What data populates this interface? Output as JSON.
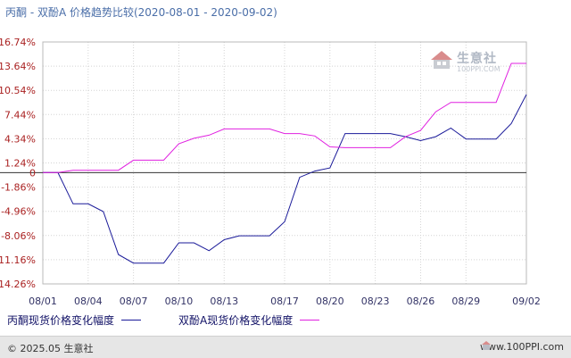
{
  "header": {
    "title": "丙酮 - 双酚A 价格趋势比较(2020-08-01 - 2020-09-02)"
  },
  "legend": [
    {
      "name": "丙酮现货价格变化幅度",
      "color": "#1a1a99"
    },
    {
      "name": "双酚A现货价格变化幅度",
      "color": "#e020e0"
    }
  ],
  "watermark": {
    "brand": "生意社",
    "url": "100PPI.COM"
  },
  "footer": {
    "copyright": "© 2025.05 生意社",
    "site": "www.100PPI.com"
  },
  "chart_data": {
    "type": "line",
    "title": "丙酮 - 双酚A 价格趋势比较(2020-08-01 - 2020-09-02)",
    "xlabel": "",
    "ylabel": "",
    "x_range": [
      "08/01",
      "09/02"
    ],
    "x_tick_labels": [
      "08/01",
      "08/04",
      "08/07",
      "08/10",
      "08/13",
      "08/17",
      "08/20",
      "08/23",
      "08/26",
      "08/29",
      "09/02"
    ],
    "y_tick_labels": [
      "16.74%",
      "13.64%",
      "10.54%",
      "7.44%",
      "4.34%",
      "1.24%",
      "0",
      "-1.86%",
      "-4.96%",
      "-8.06%",
      "-11.16%",
      "-14.26%"
    ],
    "y_ticks": [
      16.74,
      13.64,
      10.54,
      7.44,
      4.34,
      1.24,
      0,
      -1.86,
      -4.96,
      -8.06,
      -11.16,
      -14.26
    ],
    "ylim": [
      -14.26,
      16.74
    ],
    "grid": true,
    "legend_position": "bottom",
    "series": [
      {
        "name": "丙酮现货价格变化幅度",
        "color": "#1a1a99",
        "points": [
          [
            "08/01",
            0
          ],
          [
            "08/02",
            0
          ],
          [
            "08/03",
            -4.0
          ],
          [
            "08/04",
            -4.0
          ],
          [
            "08/05",
            -5.0
          ],
          [
            "08/06",
            -10.5
          ],
          [
            "08/07",
            -11.6
          ],
          [
            "08/08",
            -11.6
          ],
          [
            "08/09",
            -11.6
          ],
          [
            "08/10",
            -9.0
          ],
          [
            "08/11",
            -9.0
          ],
          [
            "08/12",
            -10.0
          ],
          [
            "08/13",
            -8.6
          ],
          [
            "08/14",
            -8.1
          ],
          [
            "08/15",
            -8.1
          ],
          [
            "08/16",
            -8.1
          ],
          [
            "08/17",
            -6.3
          ],
          [
            "08/18",
            -0.6
          ],
          [
            "08/19",
            0.2
          ],
          [
            "08/20",
            0.6
          ],
          [
            "08/21",
            5.0
          ],
          [
            "08/22",
            5.0
          ],
          [
            "08/23",
            5.0
          ],
          [
            "08/24",
            5.0
          ],
          [
            "08/25",
            4.6
          ],
          [
            "08/26",
            4.1
          ],
          [
            "08/27",
            4.6
          ],
          [
            "08/28",
            5.7
          ],
          [
            "08/29",
            4.3
          ],
          [
            "08/30",
            4.3
          ],
          [
            "08/31",
            4.3
          ],
          [
            "09/01",
            6.3
          ],
          [
            "09/02",
            10.0
          ]
        ]
      },
      {
        "name": "双酚A现货价格变化幅度",
        "color": "#e020e0",
        "points": [
          [
            "08/01",
            0
          ],
          [
            "08/02",
            0
          ],
          [
            "08/03",
            0.3
          ],
          [
            "08/04",
            0.3
          ],
          [
            "08/05",
            0.3
          ],
          [
            "08/06",
            0.3
          ],
          [
            "08/07",
            1.6
          ],
          [
            "08/08",
            1.6
          ],
          [
            "08/09",
            1.6
          ],
          [
            "08/10",
            3.7
          ],
          [
            "08/11",
            4.4
          ],
          [
            "08/12",
            4.8
          ],
          [
            "08/13",
            5.6
          ],
          [
            "08/14",
            5.6
          ],
          [
            "08/15",
            5.6
          ],
          [
            "08/16",
            5.6
          ],
          [
            "08/17",
            5.0
          ],
          [
            "08/18",
            5.0
          ],
          [
            "08/19",
            4.7
          ],
          [
            "08/20",
            3.3
          ],
          [
            "08/21",
            3.2
          ],
          [
            "08/22",
            3.2
          ],
          [
            "08/23",
            3.2
          ],
          [
            "08/24",
            3.2
          ],
          [
            "08/25",
            4.6
          ],
          [
            "08/26",
            5.4
          ],
          [
            "08/27",
            7.8
          ],
          [
            "08/28",
            9.0
          ],
          [
            "08/29",
            9.0
          ],
          [
            "08/30",
            9.0
          ],
          [
            "08/31",
            9.0
          ],
          [
            "09/01",
            14.0
          ],
          [
            "09/02",
            14.0
          ]
        ]
      }
    ]
  }
}
